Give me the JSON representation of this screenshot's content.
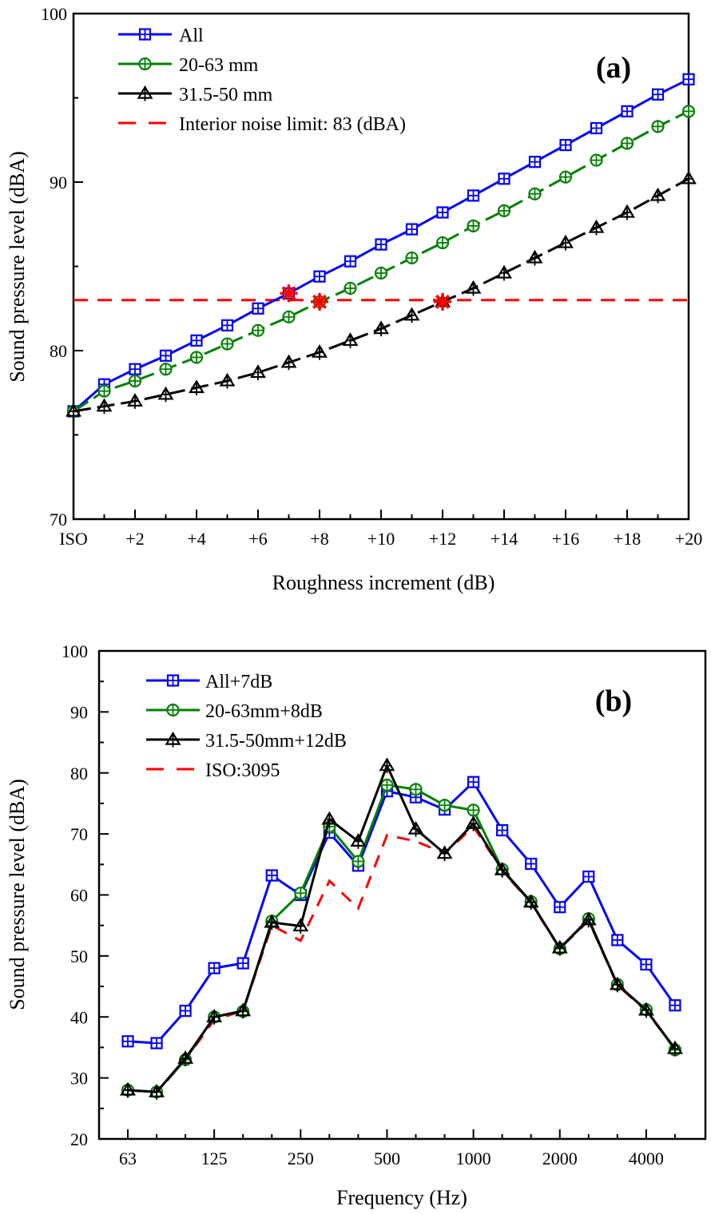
{
  "chart_data": [
    {
      "id": "a",
      "type": "line",
      "panel_label": "(a)",
      "xlabel": "Roughness increment (dB)",
      "ylabel": "Sound pressure level (dBA)",
      "x": [
        0,
        1,
        2,
        3,
        4,
        5,
        6,
        7,
        8,
        9,
        10,
        11,
        12,
        13,
        14,
        15,
        16,
        17,
        18,
        19,
        20
      ],
      "xticks": [
        {
          "x": 0,
          "label": "ISO"
        },
        {
          "x": 2,
          "label": "+2"
        },
        {
          "x": 4,
          "label": "+4"
        },
        {
          "x": 6,
          "label": "+6"
        },
        {
          "x": 8,
          "label": "+8"
        },
        {
          "x": 10,
          "label": "+10"
        },
        {
          "x": 12,
          "label": "+12"
        },
        {
          "x": 14,
          "label": "+14"
        },
        {
          "x": 16,
          "label": "+16"
        },
        {
          "x": 18,
          "label": "+18"
        },
        {
          "x": 20,
          "label": "+20"
        }
      ],
      "xlim": [
        0,
        20
      ],
      "ylim": [
        70,
        100
      ],
      "yticks": [
        70,
        80,
        90,
        100
      ],
      "yminor": [
        75,
        85,
        95
      ],
      "legend_position": "top-left",
      "series": [
        {
          "name": "All",
          "color": "#0000ff",
          "marker": "square-plus",
          "dash": "solid",
          "values": [
            76.4,
            78.0,
            78.9,
            79.7,
            80.6,
            81.5,
            82.5,
            83.4,
            84.4,
            85.3,
            86.3,
            87.2,
            88.2,
            89.2,
            90.2,
            91.2,
            92.2,
            93.2,
            94.2,
            95.2,
            96.1
          ]
        },
        {
          "name": "20-63 mm",
          "color": "#008000",
          "marker": "circle-plus",
          "dash": "dashed",
          "values": [
            76.4,
            77.6,
            78.2,
            78.9,
            79.6,
            80.4,
            81.2,
            82.0,
            82.9,
            83.7,
            84.6,
            85.5,
            86.4,
            87.4,
            88.3,
            89.3,
            90.3,
            91.3,
            92.3,
            93.3,
            94.2
          ]
        },
        {
          "name": "31.5-50 mm",
          "color": "#000000",
          "marker": "triangle-plus",
          "dash": "dashed",
          "values": [
            76.4,
            76.7,
            77.0,
            77.4,
            77.8,
            78.2,
            78.7,
            79.3,
            79.9,
            80.6,
            81.3,
            82.1,
            82.9,
            83.7,
            84.6,
            85.5,
            86.4,
            87.3,
            88.2,
            89.2,
            90.2
          ]
        }
      ],
      "reference_line": {
        "name": "Interior noise limit: 83 (dBA)",
        "value": 83,
        "color": "#ff0000",
        "dash": "dashed"
      },
      "intersections": [
        {
          "x": 7,
          "y": 83.4,
          "series": "All"
        },
        {
          "x": 8,
          "y": 82.9,
          "series": "20-63 mm"
        },
        {
          "x": 12,
          "y": 82.9,
          "series": "31.5-50 mm"
        }
      ]
    },
    {
      "id": "b",
      "type": "line",
      "panel_label": "(b)",
      "xlabel": "Frequency (Hz)",
      "ylabel": "Sound pressure level (dBA)",
      "categories": [
        "63",
        "80",
        "100",
        "125",
        "160",
        "200",
        "250",
        "315",
        "400",
        "500",
        "630",
        "800",
        "1000",
        "1250",
        "1600",
        "2000",
        "2500",
        "3150",
        "4000",
        "5000"
      ],
      "xticks": [
        {
          "index": 0,
          "label": "63"
        },
        {
          "index": 3,
          "label": "125"
        },
        {
          "index": 6,
          "label": "250"
        },
        {
          "index": 9,
          "label": "500"
        },
        {
          "index": 12,
          "label": "1000"
        },
        {
          "index": 15,
          "label": "2000"
        },
        {
          "index": 18,
          "label": "4000"
        }
      ],
      "ylim": [
        20,
        100
      ],
      "yticks": [
        20,
        30,
        40,
        50,
        60,
        70,
        80,
        90,
        100
      ],
      "yminor": [
        25,
        35,
        45,
        55,
        65,
        75,
        85,
        95
      ],
      "legend_position": "top-left",
      "series": [
        {
          "name": "All+7dB",
          "color": "#0000ff",
          "marker": "square-plus",
          "dash": "solid",
          "values": [
            36.0,
            35.7,
            41.0,
            48.0,
            48.8,
            63.2,
            60.0,
            70.2,
            64.8,
            77.0,
            76.0,
            74.0,
            78.5,
            70.6,
            65.1,
            58.0,
            63.0,
            52.6,
            48.6,
            41.9
          ]
        },
        {
          "name": "20-63mm+8dB",
          "color": "#008000",
          "marker": "circle-plus",
          "dash": "solid",
          "values": [
            28.0,
            27.7,
            33.0,
            40.0,
            40.9,
            55.7,
            60.3,
            71.2,
            65.5,
            78.0,
            77.3,
            74.7,
            73.9,
            64.2,
            58.9,
            51.2,
            56.1,
            45.3,
            41.2,
            34.6
          ]
        },
        {
          "name": "31.5-50mm+12dB",
          "color": "#000000",
          "marker": "triangle-plus",
          "dash": "solid",
          "values": [
            28.0,
            27.7,
            33.2,
            40.0,
            41.0,
            55.5,
            54.9,
            72.4,
            68.8,
            81.2,
            70.8,
            66.8,
            71.7,
            64.1,
            58.8,
            51.3,
            55.9,
            45.3,
            41.1,
            34.8
          ]
        },
        {
          "name": "ISO:3095",
          "color": "#ff0000",
          "marker": "none",
          "dash": "dashed",
          "values": [
            28.0,
            27.6,
            33.0,
            39.5,
            41.0,
            55.0,
            52.5,
            62.3,
            57.8,
            69.8,
            68.8,
            66.8,
            71.2,
            64.0,
            58.7,
            51.2,
            55.8,
            45.2,
            41.0,
            34.7
          ]
        }
      ]
    }
  ]
}
